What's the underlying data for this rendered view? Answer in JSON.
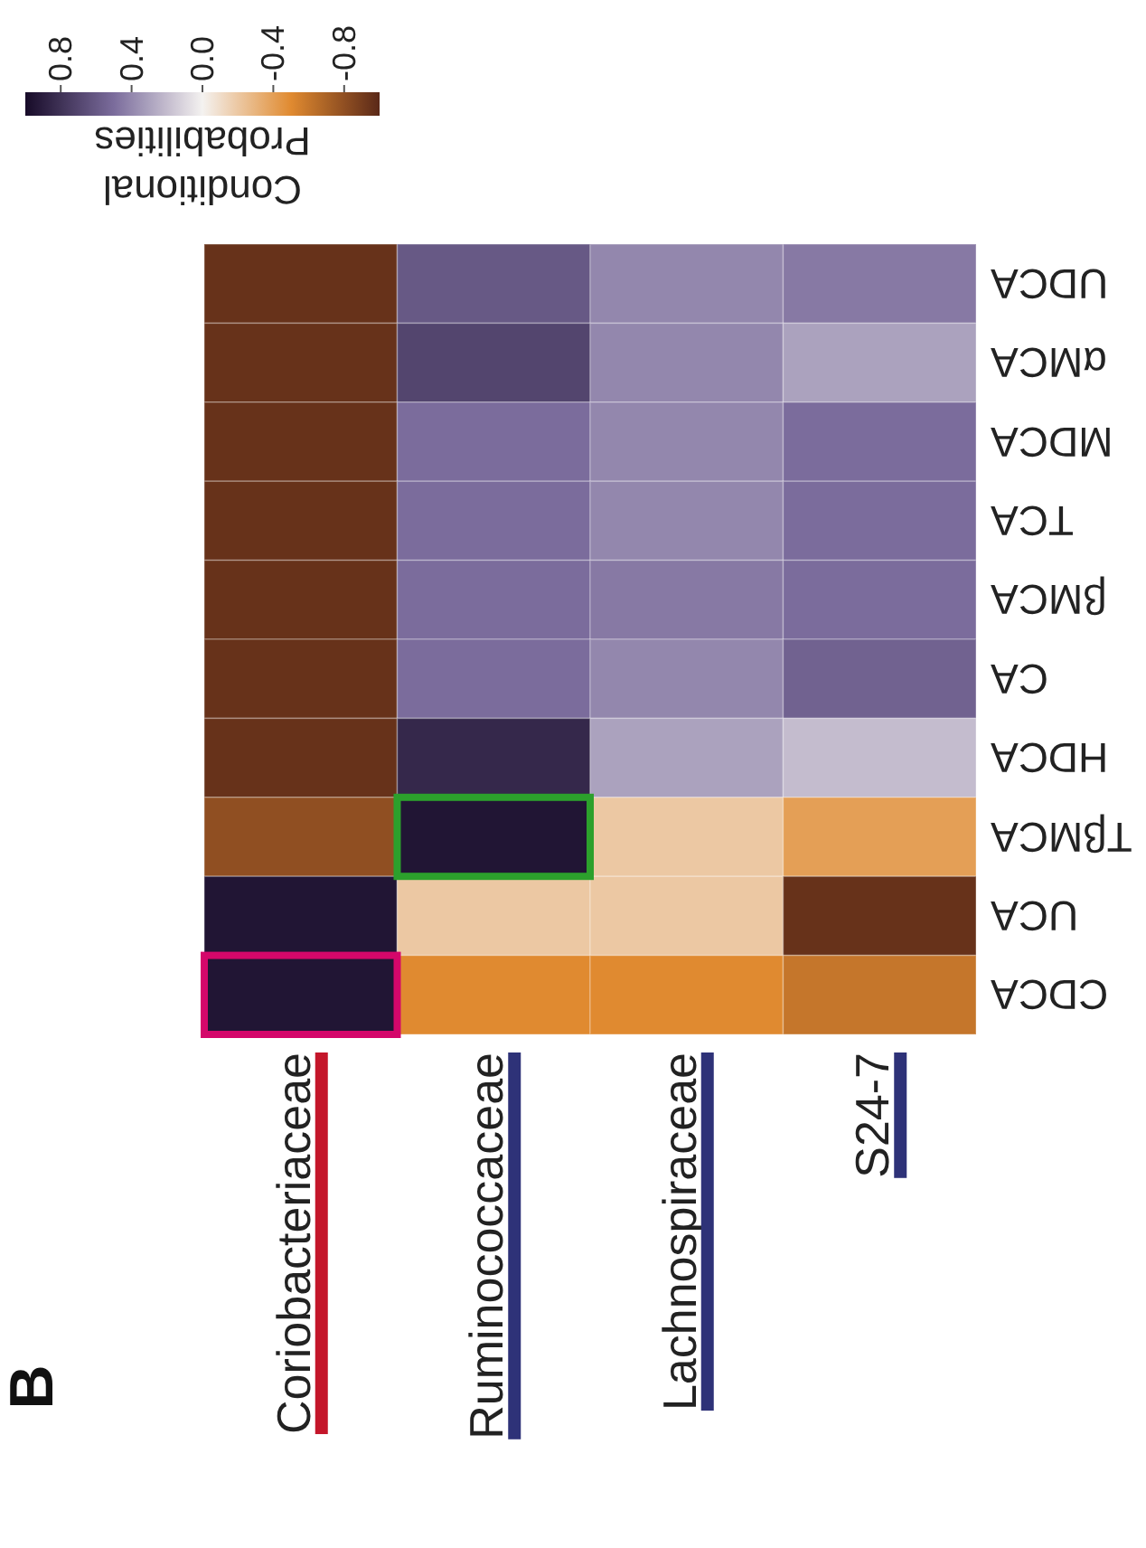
{
  "chart_data": {
    "type": "heatmap",
    "annotations": [
      "B"
    ],
    "categories": [
      "Coriobacteriaceae",
      "Ruminococcaceae",
      "Lachnospiraceae",
      "S24-7"
    ],
    "y_categories": [
      "UDCA",
      "αMCA",
      "MDCA",
      "TCA",
      "βMCA",
      "CA",
      "HDCA",
      "TβMCA",
      "UCA",
      "CDCA"
    ],
    "cells": [
      [
        -0.95,
        0.6,
        0.4,
        0.45
      ],
      [
        -0.95,
        0.7,
        0.4,
        0.3
      ],
      [
        -0.95,
        0.5,
        0.4,
        0.5
      ],
      [
        -0.95,
        0.5,
        0.4,
        0.5
      ],
      [
        -0.95,
        0.5,
        0.45,
        0.5
      ],
      [
        -0.95,
        0.5,
        0.4,
        0.55
      ],
      [
        -0.95,
        0.85,
        0.3,
        0.2
      ],
      [
        -0.8,
        0.95,
        -0.2,
        -0.4
      ],
      [
        0.95,
        -0.2,
        -0.2,
        -0.95
      ],
      [
        0.95,
        -0.5,
        -0.5,
        -0.6
      ]
    ],
    "clabel": "Conditional Probabilities",
    "clim": [
      1,
      -1
    ],
    "cticks": [
      0.8,
      0.4,
      {
        "value": 0,
        "label": "0.0"
      },
      -0.4,
      -0.8
    ]
  }
}
